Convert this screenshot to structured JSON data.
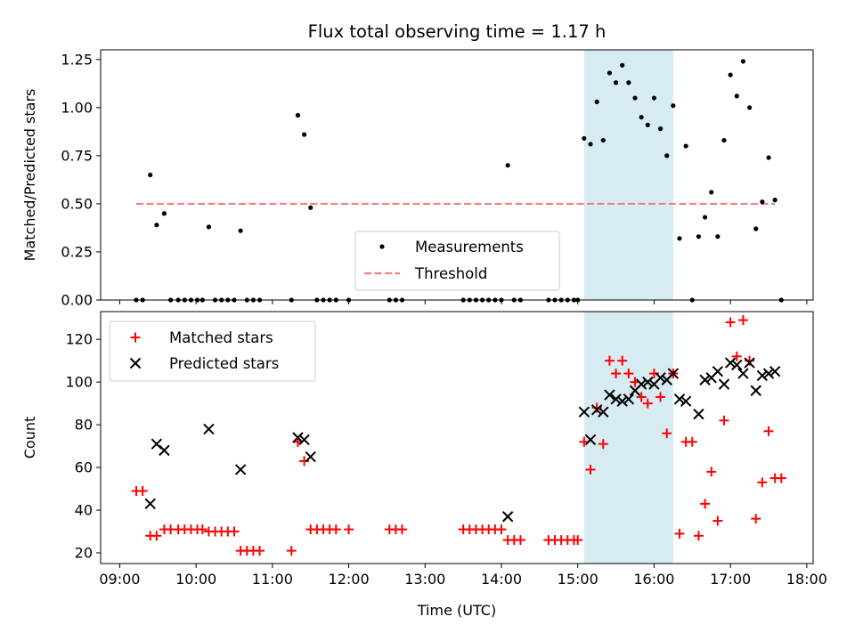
{
  "chart_data": {
    "title": "Flux total observing time = 1.17 h",
    "xlabel": "Time (UTC)",
    "xticks": [
      {
        "h": 9,
        "label": "09:00"
      },
      {
        "h": 10,
        "label": "10:00"
      },
      {
        "h": 11,
        "label": "11:00"
      },
      {
        "h": 12,
        "label": "12:00"
      },
      {
        "h": 13,
        "label": "13:00"
      },
      {
        "h": 14,
        "label": "14:00"
      },
      {
        "h": 15,
        "label": "15:00"
      },
      {
        "h": 16,
        "label": "16:00"
      },
      {
        "h": 17,
        "label": "17:00"
      },
      {
        "h": 18,
        "label": "18:00"
      }
    ],
    "xlim": [
      "08:45",
      "18:05"
    ],
    "highlight_span": [
      "15:05",
      "16:15"
    ],
    "highlight_color": "#add8e6",
    "panels": [
      {
        "type": "scatter",
        "ylabel": "Matched/Predicted stars",
        "ylim": [
          0,
          1.3
        ],
        "yticks": [
          0.0,
          0.25,
          0.5,
          0.75,
          1.0,
          1.25
        ],
        "ytick_labels": [
          "0.00",
          "0.25",
          "0.50",
          "0.75",
          "1.00",
          "1.25"
        ],
        "legend_position": "lower-center",
        "series": [
          {
            "name": "Measurements",
            "marker": "dot",
            "color": "#000000",
            "points": [
              [
                "09:13",
                0
              ],
              [
                "09:18",
                0
              ],
              [
                "09:24",
                0.65
              ],
              [
                "09:29",
                0.39
              ],
              [
                "09:35",
                0.45
              ],
              [
                "09:40",
                0
              ],
              [
                "09:46",
                0
              ],
              [
                "09:51",
                0
              ],
              [
                "09:56",
                0
              ],
              [
                "10:01",
                0
              ],
              [
                "10:05",
                0
              ],
              [
                "10:10",
                0.38
              ],
              [
                "10:15",
                0
              ],
              [
                "10:20",
                0
              ],
              [
                "10:25",
                0
              ],
              [
                "10:30",
                0
              ],
              [
                "10:35",
                0.36
              ],
              [
                "10:40",
                0
              ],
              [
                "10:45",
                0
              ],
              [
                "10:50",
                0
              ],
              [
                "11:15",
                0
              ],
              [
                "11:20",
                0.96
              ],
              [
                "11:25",
                0.86
              ],
              [
                "11:30",
                0.48
              ],
              [
                "11:35",
                0
              ],
              [
                "11:40",
                0
              ],
              [
                "11:45",
                0
              ],
              [
                "11:50",
                0
              ],
              [
                "12:00",
                0
              ],
              [
                "12:32",
                0
              ],
              [
                "12:37",
                0
              ],
              [
                "12:42",
                0
              ],
              [
                "13:30",
                0
              ],
              [
                "13:35",
                0
              ],
              [
                "13:40",
                0
              ],
              [
                "13:45",
                0
              ],
              [
                "13:50",
                0
              ],
              [
                "13:55",
                0
              ],
              [
                "14:00",
                0
              ],
              [
                "14:05",
                0.7
              ],
              [
                "14:10",
                0
              ],
              [
                "14:15",
                0
              ],
              [
                "14:37",
                0
              ],
              [
                "14:42",
                0
              ],
              [
                "14:47",
                0
              ],
              [
                "14:52",
                0
              ],
              [
                "14:57",
                0
              ],
              [
                "15:00",
                0
              ],
              [
                "15:05",
                0.84
              ],
              [
                "15:10",
                0.81
              ],
              [
                "15:15",
                1.03
              ],
              [
                "15:20",
                0.83
              ],
              [
                "15:25",
                1.18
              ],
              [
                "15:30",
                1.13
              ],
              [
                "15:35",
                1.22
              ],
              [
                "15:40",
                1.13
              ],
              [
                "15:45",
                1.05
              ],
              [
                "15:50",
                0.95
              ],
              [
                "15:55",
                0.91
              ],
              [
                "16:00",
                1.05
              ],
              [
                "16:05",
                0.89
              ],
              [
                "16:10",
                0.75
              ],
              [
                "16:15",
                1.01
              ],
              [
                "16:20",
                0.32
              ],
              [
                "16:25",
                0.8
              ],
              [
                "16:30",
                0
              ],
              [
                "16:35",
                0.33
              ],
              [
                "16:40",
                0.43
              ],
              [
                "16:45",
                0.56
              ],
              [
                "16:50",
                0.33
              ],
              [
                "16:55",
                0.83
              ],
              [
                "17:00",
                1.17
              ],
              [
                "17:05",
                1.06
              ],
              [
                "17:10",
                1.24
              ],
              [
                "17:15",
                1.0
              ],
              [
                "17:20",
                0.37
              ],
              [
                "17:25",
                0.51
              ],
              [
                "17:30",
                0.74
              ],
              [
                "17:35",
                0.52
              ],
              [
                "17:40",
                0
              ]
            ]
          },
          {
            "name": "Threshold",
            "type": "line",
            "style": "dashed",
            "color": "#f08080",
            "y": 0.5,
            "x_range": [
              "09:13",
              "17:35"
            ]
          }
        ]
      },
      {
        "type": "scatter",
        "ylabel": "Count",
        "ylim": [
          15,
          133
        ],
        "yticks": [
          20,
          40,
          60,
          80,
          100,
          120
        ],
        "legend_position": "upper-left",
        "series": [
          {
            "name": "Matched stars",
            "marker": "plus",
            "color": "#ff0000",
            "points": [
              [
                "09:13",
                49
              ],
              [
                "09:18",
                49
              ],
              [
                "09:24",
                28
              ],
              [
                "09:29",
                28
              ],
              [
                "09:35",
                31
              ],
              [
                "09:40",
                31
              ],
              [
                "09:46",
                31
              ],
              [
                "09:51",
                31
              ],
              [
                "09:56",
                31
              ],
              [
                "10:01",
                31
              ],
              [
                "10:05",
                31
              ],
              [
                "10:10",
                30
              ],
              [
                "10:15",
                30
              ],
              [
                "10:20",
                30
              ],
              [
                "10:25",
                30
              ],
              [
                "10:30",
                30
              ],
              [
                "10:35",
                21
              ],
              [
                "10:40",
                21
              ],
              [
                "10:45",
                21
              ],
              [
                "10:50",
                21
              ],
              [
                "11:15",
                21
              ],
              [
                "11:20",
                72
              ],
              [
                "11:25",
                63
              ],
              [
                "11:30",
                31
              ],
              [
                "11:35",
                31
              ],
              [
                "11:40",
                31
              ],
              [
                "11:45",
                31
              ],
              [
                "11:50",
                31
              ],
              [
                "12:00",
                31
              ],
              [
                "12:32",
                31
              ],
              [
                "12:37",
                31
              ],
              [
                "12:42",
                31
              ],
              [
                "13:30",
                31
              ],
              [
                "13:35",
                31
              ],
              [
                "13:40",
                31
              ],
              [
                "13:45",
                31
              ],
              [
                "13:50",
                31
              ],
              [
                "13:55",
                31
              ],
              [
                "14:00",
                31
              ],
              [
                "14:05",
                26
              ],
              [
                "14:10",
                26
              ],
              [
                "14:15",
                26
              ],
              [
                "14:37",
                26
              ],
              [
                "14:42",
                26
              ],
              [
                "14:47",
                26
              ],
              [
                "14:52",
                26
              ],
              [
                "14:57",
                26
              ],
              [
                "15:00",
                26
              ],
              [
                "15:05",
                72
              ],
              [
                "15:10",
                59
              ],
              [
                "15:15",
                88
              ],
              [
                "15:20",
                71
              ],
              [
                "15:25",
                110
              ],
              [
                "15:30",
                104
              ],
              [
                "15:35",
                110
              ],
              [
                "15:40",
                104
              ],
              [
                "15:45",
                100
              ],
              [
                "15:50",
                93
              ],
              [
                "15:55",
                90
              ],
              [
                "16:00",
                104
              ],
              [
                "16:05",
                93
              ],
              [
                "16:10",
                76
              ],
              [
                "16:15",
                104
              ],
              [
                "16:20",
                29
              ],
              [
                "16:25",
                72
              ],
              [
                "16:30",
                72
              ],
              [
                "16:35",
                28
              ],
              [
                "16:40",
                43
              ],
              [
                "16:45",
                58
              ],
              [
                "16:50",
                35
              ],
              [
                "16:55",
                82
              ],
              [
                "17:00",
                128
              ],
              [
                "17:05",
                112
              ],
              [
                "17:10",
                129
              ],
              [
                "17:15",
                110
              ],
              [
                "17:20",
                36
              ],
              [
                "17:25",
                53
              ],
              [
                "17:30",
                77
              ],
              [
                "17:35",
                55
              ],
              [
                "17:40",
                55
              ]
            ]
          },
          {
            "name": "Predicted stars",
            "marker": "x",
            "color": "#000000",
            "points": [
              [
                "09:24",
                43
              ],
              [
                "09:29",
                71
              ],
              [
                "09:35",
                68
              ],
              [
                "10:10",
                78
              ],
              [
                "10:35",
                59
              ],
              [
                "11:20",
                74
              ],
              [
                "11:25",
                73
              ],
              [
                "11:30",
                65
              ],
              [
                "14:05",
                37
              ],
              [
                "15:05",
                86
              ],
              [
                "15:10",
                73
              ],
              [
                "15:15",
                87
              ],
              [
                "15:20",
                86
              ],
              [
                "15:25",
                94
              ],
              [
                "15:30",
                92
              ],
              [
                "15:35",
                91
              ],
              [
                "15:40",
                92
              ],
              [
                "15:45",
                96
              ],
              [
                "15:50",
                99
              ],
              [
                "15:55",
                100
              ],
              [
                "16:00",
                99
              ],
              [
                "16:05",
                102
              ],
              [
                "16:10",
                101
              ],
              [
                "16:15",
                104
              ],
              [
                "16:20",
                92
              ],
              [
                "16:25",
                91
              ],
              [
                "16:35",
                85
              ],
              [
                "16:40",
                101
              ],
              [
                "16:45",
                102
              ],
              [
                "16:50",
                105
              ],
              [
                "16:55",
                99
              ],
              [
                "17:00",
                109
              ],
              [
                "17:05",
                108
              ],
              [
                "17:10",
                104
              ],
              [
                "17:15",
                109
              ],
              [
                "17:20",
                96
              ],
              [
                "17:25",
                103
              ],
              [
                "17:30",
                104
              ],
              [
                "17:35",
                105
              ]
            ]
          }
        ]
      }
    ]
  }
}
